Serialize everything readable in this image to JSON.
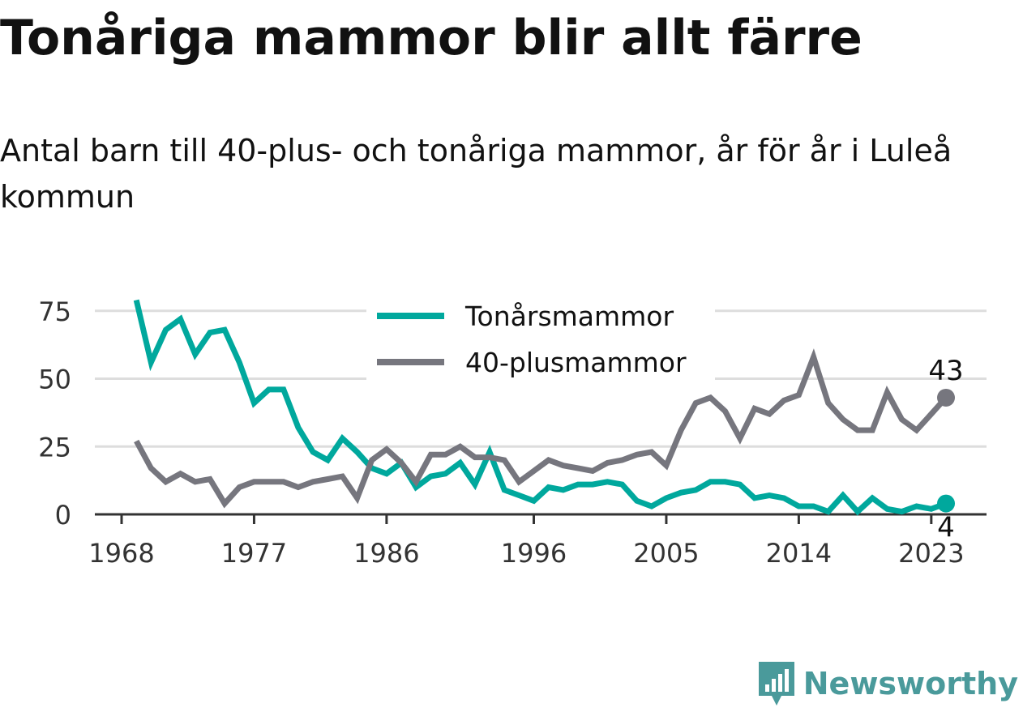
{
  "title": "Tonåriga mammor blir allt färre",
  "subtitle": "Antal barn till 40-plus- och tonåriga mammor, år för år i Luleå kommun",
  "brand": {
    "name": "Newsworthy",
    "icon": "newsworthy-logo-icon"
  },
  "colors": {
    "teen": "#00a89d",
    "forty": "#76767e",
    "grid": "#dddddd",
    "axis": "#333333",
    "brand": "#4a9a9b"
  },
  "chart_data": {
    "type": "line",
    "x": [
      1969,
      1970,
      1971,
      1972,
      1973,
      1974,
      1975,
      1976,
      1977,
      1978,
      1979,
      1980,
      1981,
      1982,
      1983,
      1984,
      1985,
      1986,
      1987,
      1988,
      1989,
      1990,
      1991,
      1992,
      1993,
      1994,
      1995,
      1996,
      1997,
      1998,
      1999,
      2000,
      2001,
      2002,
      2003,
      2004,
      2005,
      2006,
      2007,
      2008,
      2009,
      2010,
      2011,
      2012,
      2013,
      2014,
      2015,
      2016,
      2017,
      2018,
      2019,
      2020,
      2021,
      2022,
      2023,
      2024
    ],
    "series": [
      {
        "name": "Tonårsmammor",
        "color": "#00a89d",
        "values": [
          79,
          56,
          68,
          72,
          59,
          67,
          68,
          56,
          41,
          46,
          46,
          32,
          23,
          20,
          28,
          23,
          17,
          15,
          19,
          10,
          14,
          15,
          19,
          11,
          23,
          9,
          7,
          5,
          10,
          9,
          11,
          11,
          12,
          11,
          5,
          3,
          6,
          8,
          9,
          12,
          12,
          11,
          6,
          7,
          6,
          3,
          3,
          1,
          7,
          1,
          6,
          2,
          1,
          3,
          2,
          4
        ],
        "end_label": "4"
      },
      {
        "name": "40-plusmammor",
        "color": "#76767e",
        "values": [
          27,
          17,
          12,
          15,
          12,
          13,
          4,
          10,
          12,
          12,
          12,
          10,
          12,
          13,
          14,
          6,
          20,
          24,
          19,
          12,
          22,
          22,
          25,
          21,
          21,
          20,
          12,
          16,
          20,
          18,
          17,
          16,
          19,
          20,
          22,
          23,
          18,
          31,
          41,
          43,
          38,
          28,
          39,
          37,
          42,
          44,
          58,
          41,
          35,
          31,
          31,
          45,
          35,
          31,
          37,
          43
        ],
        "end_label": "43"
      }
    ],
    "xticks": [
      1968,
      1977,
      1986,
      1996,
      2005,
      2014,
      2023
    ],
    "yticks": [
      0,
      25,
      50,
      75
    ],
    "xlim": [
      1968,
      2025.4
    ],
    "ylim": [
      0,
      80
    ],
    "grid": true,
    "legend_position": "top-center",
    "xlabel": "",
    "ylabel": ""
  }
}
